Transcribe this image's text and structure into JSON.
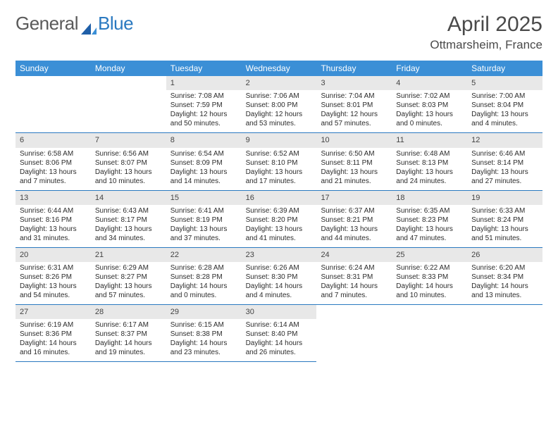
{
  "brand": {
    "word1": "General",
    "word2": "Blue"
  },
  "title": "April 2025",
  "location": "Ottmarsheim, France",
  "colors": {
    "header_bg": "#3b8fd6",
    "divider": "#2a79c0",
    "gray_bg": "#e8e8e8",
    "text": "#2c2c2c",
    "logo_gray": "#5a5a5a",
    "logo_blue": "#2a79c0"
  },
  "dayNames": [
    "Sunday",
    "Monday",
    "Tuesday",
    "Wednesday",
    "Thursday",
    "Friday",
    "Saturday"
  ],
  "weeks": [
    [
      {
        "num": "",
        "lines": [],
        "gray": false
      },
      {
        "num": "",
        "lines": [],
        "gray": false
      },
      {
        "num": "1",
        "lines": [
          "Sunrise: 7:08 AM",
          "Sunset: 7:59 PM",
          "Daylight: 12 hours and 50 minutes."
        ],
        "gray": true
      },
      {
        "num": "2",
        "lines": [
          "Sunrise: 7:06 AM",
          "Sunset: 8:00 PM",
          "Daylight: 12 hours and 53 minutes."
        ],
        "gray": true
      },
      {
        "num": "3",
        "lines": [
          "Sunrise: 7:04 AM",
          "Sunset: 8:01 PM",
          "Daylight: 12 hours and 57 minutes."
        ],
        "gray": true
      },
      {
        "num": "4",
        "lines": [
          "Sunrise: 7:02 AM",
          "Sunset: 8:03 PM",
          "Daylight: 13 hours and 0 minutes."
        ],
        "gray": true
      },
      {
        "num": "5",
        "lines": [
          "Sunrise: 7:00 AM",
          "Sunset: 8:04 PM",
          "Daylight: 13 hours and 4 minutes."
        ],
        "gray": true
      }
    ],
    [
      {
        "num": "6",
        "lines": [
          "Sunrise: 6:58 AM",
          "Sunset: 8:06 PM",
          "Daylight: 13 hours and 7 minutes."
        ],
        "gray": true
      },
      {
        "num": "7",
        "lines": [
          "Sunrise: 6:56 AM",
          "Sunset: 8:07 PM",
          "Daylight: 13 hours and 10 minutes."
        ],
        "gray": true
      },
      {
        "num": "8",
        "lines": [
          "Sunrise: 6:54 AM",
          "Sunset: 8:09 PM",
          "Daylight: 13 hours and 14 minutes."
        ],
        "gray": true
      },
      {
        "num": "9",
        "lines": [
          "Sunrise: 6:52 AM",
          "Sunset: 8:10 PM",
          "Daylight: 13 hours and 17 minutes."
        ],
        "gray": true
      },
      {
        "num": "10",
        "lines": [
          "Sunrise: 6:50 AM",
          "Sunset: 8:11 PM",
          "Daylight: 13 hours and 21 minutes."
        ],
        "gray": true
      },
      {
        "num": "11",
        "lines": [
          "Sunrise: 6:48 AM",
          "Sunset: 8:13 PM",
          "Daylight: 13 hours and 24 minutes."
        ],
        "gray": true
      },
      {
        "num": "12",
        "lines": [
          "Sunrise: 6:46 AM",
          "Sunset: 8:14 PM",
          "Daylight: 13 hours and 27 minutes."
        ],
        "gray": true
      }
    ],
    [
      {
        "num": "13",
        "lines": [
          "Sunrise: 6:44 AM",
          "Sunset: 8:16 PM",
          "Daylight: 13 hours and 31 minutes."
        ],
        "gray": true
      },
      {
        "num": "14",
        "lines": [
          "Sunrise: 6:43 AM",
          "Sunset: 8:17 PM",
          "Daylight: 13 hours and 34 minutes."
        ],
        "gray": true
      },
      {
        "num": "15",
        "lines": [
          "Sunrise: 6:41 AM",
          "Sunset: 8:19 PM",
          "Daylight: 13 hours and 37 minutes."
        ],
        "gray": true
      },
      {
        "num": "16",
        "lines": [
          "Sunrise: 6:39 AM",
          "Sunset: 8:20 PM",
          "Daylight: 13 hours and 41 minutes."
        ],
        "gray": true
      },
      {
        "num": "17",
        "lines": [
          "Sunrise: 6:37 AM",
          "Sunset: 8:21 PM",
          "Daylight: 13 hours and 44 minutes."
        ],
        "gray": true
      },
      {
        "num": "18",
        "lines": [
          "Sunrise: 6:35 AM",
          "Sunset: 8:23 PM",
          "Daylight: 13 hours and 47 minutes."
        ],
        "gray": true
      },
      {
        "num": "19",
        "lines": [
          "Sunrise: 6:33 AM",
          "Sunset: 8:24 PM",
          "Daylight: 13 hours and 51 minutes."
        ],
        "gray": true
      }
    ],
    [
      {
        "num": "20",
        "lines": [
          "Sunrise: 6:31 AM",
          "Sunset: 8:26 PM",
          "Daylight: 13 hours and 54 minutes."
        ],
        "gray": true
      },
      {
        "num": "21",
        "lines": [
          "Sunrise: 6:29 AM",
          "Sunset: 8:27 PM",
          "Daylight: 13 hours and 57 minutes."
        ],
        "gray": true
      },
      {
        "num": "22",
        "lines": [
          "Sunrise: 6:28 AM",
          "Sunset: 8:28 PM",
          "Daylight: 14 hours and 0 minutes."
        ],
        "gray": true
      },
      {
        "num": "23",
        "lines": [
          "Sunrise: 6:26 AM",
          "Sunset: 8:30 PM",
          "Daylight: 14 hours and 4 minutes."
        ],
        "gray": true
      },
      {
        "num": "24",
        "lines": [
          "Sunrise: 6:24 AM",
          "Sunset: 8:31 PM",
          "Daylight: 14 hours and 7 minutes."
        ],
        "gray": true
      },
      {
        "num": "25",
        "lines": [
          "Sunrise: 6:22 AM",
          "Sunset: 8:33 PM",
          "Daylight: 14 hours and 10 minutes."
        ],
        "gray": true
      },
      {
        "num": "26",
        "lines": [
          "Sunrise: 6:20 AM",
          "Sunset: 8:34 PM",
          "Daylight: 14 hours and 13 minutes."
        ],
        "gray": true
      }
    ],
    [
      {
        "num": "27",
        "lines": [
          "Sunrise: 6:19 AM",
          "Sunset: 8:36 PM",
          "Daylight: 14 hours and 16 minutes."
        ],
        "gray": true
      },
      {
        "num": "28",
        "lines": [
          "Sunrise: 6:17 AM",
          "Sunset: 8:37 PM",
          "Daylight: 14 hours and 19 minutes."
        ],
        "gray": true
      },
      {
        "num": "29",
        "lines": [
          "Sunrise: 6:15 AM",
          "Sunset: 8:38 PM",
          "Daylight: 14 hours and 23 minutes."
        ],
        "gray": true
      },
      {
        "num": "30",
        "lines": [
          "Sunrise: 6:14 AM",
          "Sunset: 8:40 PM",
          "Daylight: 14 hours and 26 minutes."
        ],
        "gray": true
      },
      {
        "num": "",
        "lines": [],
        "gray": false,
        "blank": true
      },
      {
        "num": "",
        "lines": [],
        "gray": false,
        "blank": true
      },
      {
        "num": "",
        "lines": [],
        "gray": false,
        "blank": true
      }
    ]
  ]
}
